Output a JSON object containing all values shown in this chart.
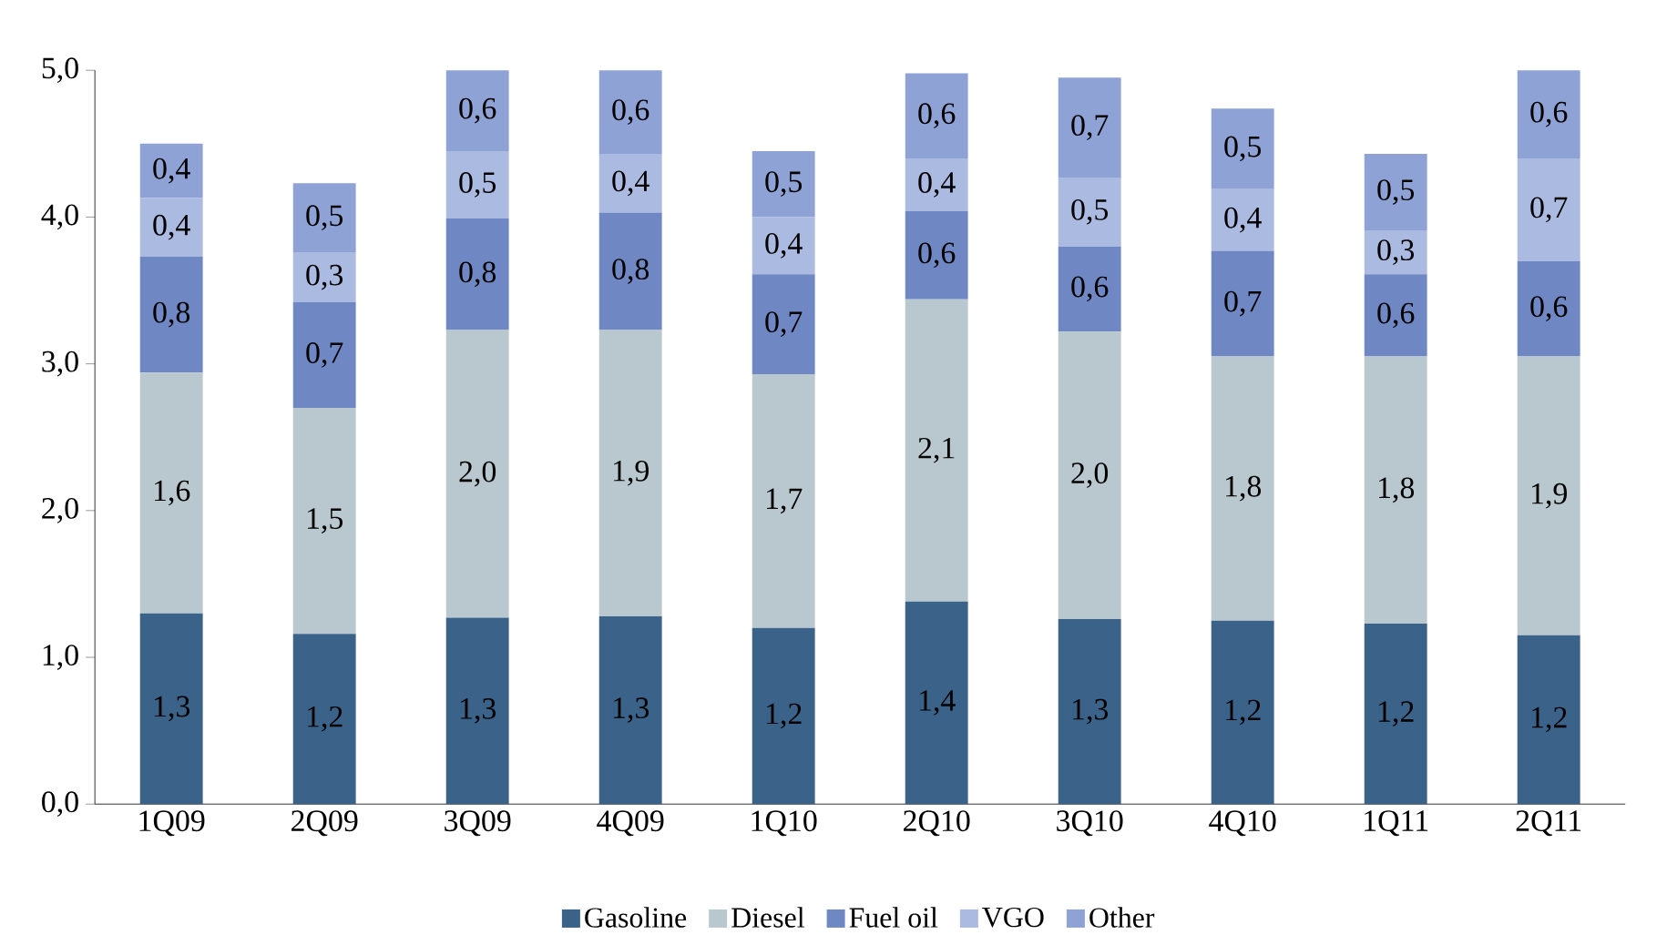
{
  "chart_data": {
    "type": "bar",
    "stacked": true,
    "categories": [
      "1Q09",
      "2Q09",
      "3Q09",
      "4Q09",
      "1Q10",
      "2Q10",
      "3Q10",
      "4Q10",
      "1Q11",
      "2Q11"
    ],
    "series": [
      {
        "name": "Gasoline",
        "color": "#3b6288",
        "values": [
          1.3,
          1.16,
          1.27,
          1.28,
          1.2,
          1.38,
          1.26,
          1.25,
          1.23,
          1.15
        ],
        "value_labels": [
          "1,3",
          "1,2",
          "1,3",
          "1,3",
          "1,2",
          "1,4",
          "1,3",
          "1,2",
          "1,2",
          "1,2"
        ]
      },
      {
        "name": "Diesel",
        "color": "#b8c8ce",
        "values": [
          1.64,
          1.54,
          1.96,
          1.95,
          1.73,
          2.06,
          1.96,
          1.8,
          1.82,
          1.9
        ],
        "value_labels": [
          "1,6",
          "1,5",
          "2,0",
          "1,9",
          "1,7",
          "2,1",
          "2,0",
          "1,8",
          "1,8",
          "1,9"
        ]
      },
      {
        "name": "Fuel oil",
        "color": "#6f88c3",
        "values": [
          0.79,
          0.72,
          0.76,
          0.8,
          0.68,
          0.6,
          0.58,
          0.72,
          0.56,
          0.65
        ],
        "value_labels": [
          "0,8",
          "0,7",
          "0,8",
          "0,8",
          "0,7",
          "0,6",
          "0,6",
          "0,7",
          "0,6",
          "0,6"
        ]
      },
      {
        "name": "VGO",
        "color": "#abbae1",
        "values": [
          0.4,
          0.34,
          0.46,
          0.4,
          0.39,
          0.36,
          0.47,
          0.42,
          0.3,
          0.7
        ],
        "value_labels": [
          "0,4",
          "0,3",
          "0,5",
          "0,4",
          "0,4",
          "0,4",
          "0,5",
          "0,4",
          "0,3",
          "0,7"
        ]
      },
      {
        "name": "Other",
        "color": "#8ea2d5",
        "values": [
          0.37,
          0.47,
          0.55,
          0.57,
          0.45,
          0.58,
          0.68,
          0.55,
          0.52,
          0.6
        ],
        "value_labels": [
          "0,4",
          "0,5",
          "0,6",
          "0,6",
          "0,5",
          "0,6",
          "0,7",
          "0,5",
          "0,5",
          "0,6"
        ]
      }
    ],
    "ylim": [
      0,
      5
    ],
    "yticks": [
      {
        "value": 0,
        "label": "0,0"
      },
      {
        "value": 1,
        "label": "1,0"
      },
      {
        "value": 2,
        "label": "2,0"
      },
      {
        "value": 3,
        "label": "3,0"
      },
      {
        "value": 4,
        "label": "4,0"
      },
      {
        "value": 5,
        "label": "5,0"
      }
    ],
    "grid": false,
    "legend": "bottom"
  }
}
